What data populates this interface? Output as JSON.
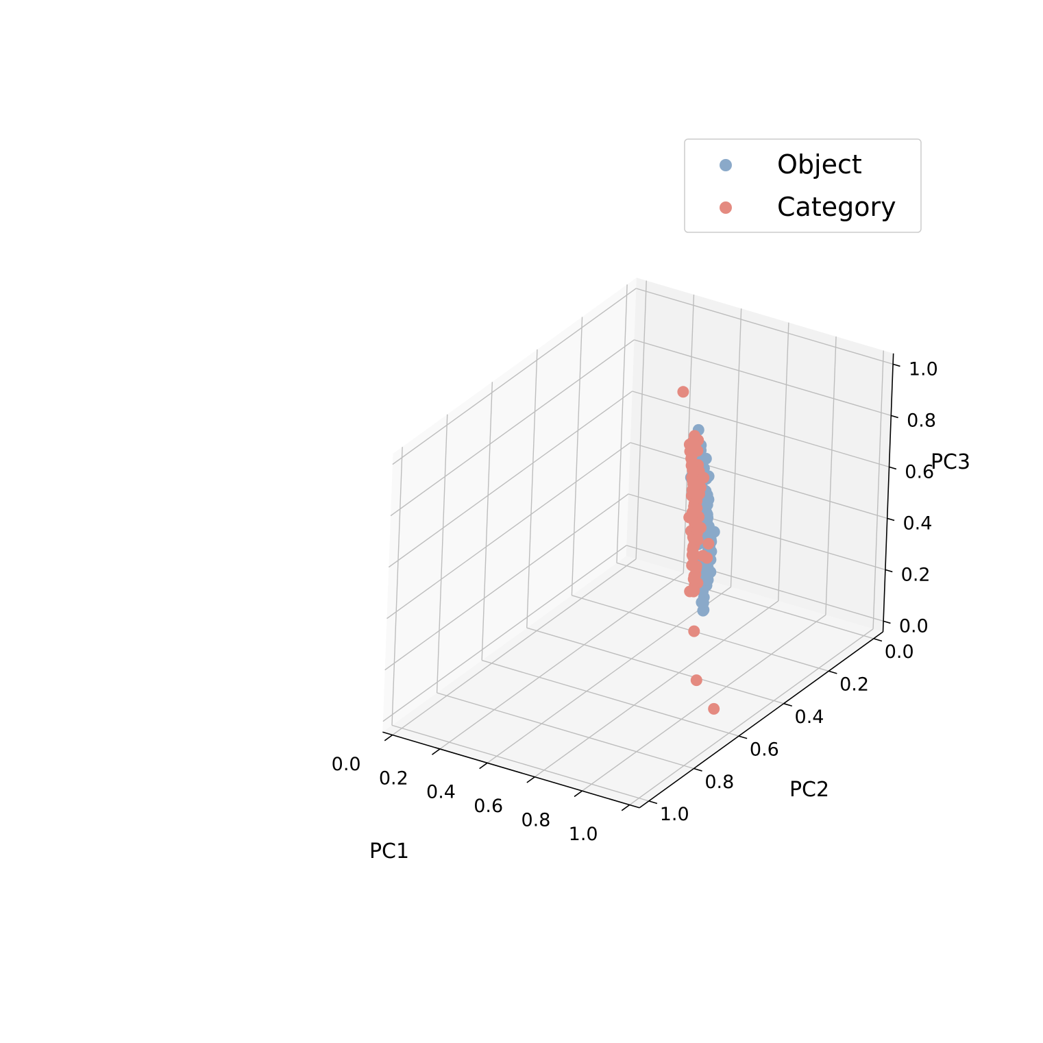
{
  "chart_data": {
    "type": "scatter",
    "projection": "3d",
    "xlabel": "PC1",
    "ylabel": "PC2",
    "zlabel": "PC3",
    "xlim": [
      0,
      1
    ],
    "ylim": [
      0,
      1
    ],
    "zlim": [
      0,
      1
    ],
    "ticks": [
      "0.0",
      "0.2",
      "0.4",
      "0.6",
      "0.8",
      "1.0"
    ],
    "grid": true,
    "legend_position": "top-right",
    "colors": {
      "Object": "#8aa9c9",
      "Category": "#e48a80"
    },
    "series": [
      {
        "name": "Object",
        "points": [
          [
            0.44,
            0.68,
            0.95
          ],
          [
            0.47,
            0.72,
            0.92
          ],
          [
            0.49,
            0.72,
            0.92
          ],
          [
            0.5,
            0.74,
            0.93
          ],
          [
            0.47,
            0.72,
            0.9
          ],
          [
            0.48,
            0.73,
            0.88
          ],
          [
            0.45,
            0.69,
            0.89
          ],
          [
            0.5,
            0.72,
            0.88
          ],
          [
            0.44,
            0.68,
            0.86
          ],
          [
            0.52,
            0.74,
            0.87
          ],
          [
            0.44,
            0.7,
            0.84
          ],
          [
            0.51,
            0.72,
            0.82
          ],
          [
            0.53,
            0.76,
            0.84
          ],
          [
            0.55,
            0.8,
            0.83
          ],
          [
            0.49,
            0.75,
            0.8
          ],
          [
            0.52,
            0.78,
            0.8
          ],
          [
            0.55,
            0.82,
            0.82
          ],
          [
            0.52,
            0.8,
            0.78
          ],
          [
            0.56,
            0.83,
            0.8
          ],
          [
            0.48,
            0.73,
            0.75
          ],
          [
            0.52,
            0.78,
            0.75
          ],
          [
            0.5,
            0.72,
            0.76
          ],
          [
            0.54,
            0.82,
            0.76
          ],
          [
            0.58,
            0.85,
            0.78
          ],
          [
            0.47,
            0.74,
            0.74
          ],
          [
            0.51,
            0.77,
            0.73
          ],
          [
            0.54,
            0.81,
            0.73
          ],
          [
            0.56,
            0.84,
            0.74
          ],
          [
            0.44,
            0.72,
            0.71
          ],
          [
            0.48,
            0.76,
            0.71
          ],
          [
            0.52,
            0.8,
            0.71
          ],
          [
            0.55,
            0.83,
            0.71
          ],
          [
            0.49,
            0.77,
            0.68
          ],
          [
            0.53,
            0.82,
            0.67
          ],
          [
            0.56,
            0.86,
            0.68
          ],
          [
            0.46,
            0.75,
            0.64
          ],
          [
            0.5,
            0.78,
            0.64
          ],
          [
            0.53,
            0.82,
            0.64
          ],
          [
            0.56,
            0.86,
            0.64
          ],
          [
            0.49,
            0.76,
            0.61
          ],
          [
            0.52,
            0.8,
            0.61
          ],
          [
            0.55,
            0.84,
            0.6
          ],
          [
            0.58,
            0.88,
            0.62
          ],
          [
            0.5,
            0.79,
            0.57
          ],
          [
            0.53,
            0.82,
            0.57
          ],
          [
            0.56,
            0.86,
            0.57
          ],
          [
            0.52,
            0.8,
            0.53
          ],
          [
            0.55,
            0.84,
            0.53
          ],
          [
            0.58,
            0.88,
            0.54
          ],
          [
            0.5,
            0.77,
            0.5
          ],
          [
            0.53,
            0.82,
            0.5
          ],
          [
            0.56,
            0.85,
            0.5
          ],
          [
            0.48,
            0.75,
            0.47
          ],
          [
            0.52,
            0.78,
            0.47
          ],
          [
            0.55,
            0.83,
            0.47
          ],
          [
            0.46,
            0.74,
            0.43
          ],
          [
            0.5,
            0.78,
            0.44
          ],
          [
            0.53,
            0.82,
            0.44
          ],
          [
            0.51,
            0.78,
            0.4
          ],
          [
            0.54,
            0.82,
            0.4
          ],
          [
            0.48,
            0.76,
            0.37
          ],
          [
            0.52,
            0.8,
            0.36
          ],
          [
            0.55,
            0.83,
            0.36
          ],
          [
            0.52,
            0.8,
            0.33
          ],
          [
            0.44,
            0.72,
            0.29
          ],
          [
            0.47,
            0.76,
            0.72
          ],
          [
            0.51,
            0.79,
            0.69
          ],
          [
            0.49,
            0.79,
            0.56
          ],
          [
            0.45,
            0.73,
            0.78
          ],
          [
            0.46,
            0.72,
            0.62
          ],
          [
            0.55,
            0.83,
            0.88
          ],
          [
            0.5,
            0.76,
            0.85
          ],
          [
            0.43,
            0.7,
            0.8
          ],
          [
            0.52,
            0.77,
            0.58
          ],
          [
            0.47,
            0.77,
            0.41
          ],
          [
            0.54,
            0.84,
            0.63
          ],
          [
            0.48,
            0.74,
            0.66
          ],
          [
            0.49,
            0.75,
            0.4
          ],
          [
            0.57,
            0.88,
            0.69
          ],
          [
            0.45,
            0.73,
            0.6
          ],
          [
            0.53,
            0.8,
            0.78
          ],
          [
            0.51,
            0.78,
            0.91
          ]
        ]
      },
      {
        "name": "Category",
        "points": [
          [
            0.44,
            0.68,
            0.91
          ],
          [
            0.43,
            0.66,
            0.88
          ],
          [
            0.46,
            0.69,
            0.89
          ],
          [
            0.38,
            0.61,
            0.87
          ],
          [
            0.4,
            0.62,
            0.86
          ],
          [
            0.43,
            0.67,
            0.86
          ],
          [
            0.39,
            0.6,
            0.84
          ],
          [
            0.42,
            0.63,
            0.84
          ],
          [
            0.48,
            0.72,
            0.85
          ],
          [
            0.54,
            0.78,
            0.88
          ],
          [
            0.51,
            0.75,
            0.83
          ],
          [
            0.5,
            0.73,
            0.81
          ],
          [
            0.4,
            0.62,
            0.81
          ],
          [
            0.42,
            0.64,
            0.8
          ],
          [
            0.46,
            0.7,
            0.8
          ],
          [
            0.53,
            0.78,
            0.81
          ],
          [
            0.37,
            0.59,
            0.77
          ],
          [
            0.4,
            0.62,
            0.77
          ],
          [
            0.44,
            0.66,
            0.76
          ],
          [
            0.49,
            0.72,
            0.77
          ],
          [
            0.42,
            0.66,
            0.74
          ],
          [
            0.44,
            0.68,
            0.75
          ],
          [
            0.35,
            0.58,
            0.71
          ],
          [
            0.38,
            0.61,
            0.71
          ],
          [
            0.4,
            0.63,
            0.7
          ],
          [
            0.42,
            0.66,
            0.71
          ],
          [
            0.46,
            0.7,
            0.71
          ],
          [
            0.48,
            0.72,
            0.71
          ],
          [
            0.5,
            0.74,
            0.7
          ],
          [
            0.36,
            0.59,
            0.68
          ],
          [
            0.4,
            0.64,
            0.68
          ],
          [
            0.42,
            0.66,
            0.67
          ],
          [
            0.46,
            0.7,
            0.67
          ],
          [
            0.49,
            0.74,
            0.66
          ],
          [
            0.37,
            0.6,
            0.65
          ],
          [
            0.39,
            0.63,
            0.64
          ],
          [
            0.42,
            0.66,
            0.64
          ],
          [
            0.44,
            0.68,
            0.63
          ],
          [
            0.47,
            0.71,
            0.63
          ],
          [
            0.49,
            0.75,
            0.62
          ],
          [
            0.35,
            0.58,
            0.61
          ],
          [
            0.38,
            0.62,
            0.61
          ],
          [
            0.41,
            0.64,
            0.6
          ],
          [
            0.44,
            0.68,
            0.6
          ],
          [
            0.47,
            0.72,
            0.6
          ],
          [
            0.36,
            0.6,
            0.58
          ],
          [
            0.39,
            0.63,
            0.57
          ],
          [
            0.42,
            0.66,
            0.57
          ],
          [
            0.45,
            0.7,
            0.56
          ],
          [
            0.48,
            0.73,
            0.56
          ],
          [
            0.36,
            0.59,
            0.54
          ],
          [
            0.4,
            0.64,
            0.53
          ],
          [
            0.43,
            0.67,
            0.53
          ],
          [
            0.46,
            0.7,
            0.53
          ],
          [
            0.38,
            0.61,
            0.5
          ],
          [
            0.41,
            0.65,
            0.5
          ],
          [
            0.44,
            0.68,
            0.5
          ],
          [
            0.47,
            0.71,
            0.49
          ],
          [
            0.37,
            0.61,
            0.47
          ],
          [
            0.4,
            0.64,
            0.46
          ],
          [
            0.44,
            0.68,
            0.46
          ],
          [
            0.47,
            0.72,
            0.45
          ],
          [
            0.38,
            0.62,
            0.43
          ],
          [
            0.41,
            0.65,
            0.43
          ],
          [
            0.45,
            0.7,
            0.42
          ],
          [
            0.37,
            0.61,
            0.4
          ],
          [
            0.4,
            0.64,
            0.39
          ],
          [
            0.44,
            0.69,
            0.39
          ],
          [
            0.37,
            0.61,
            0.36
          ],
          [
            0.41,
            0.66,
            0.36
          ],
          [
            0.44,
            0.7,
            0.36
          ],
          [
            0.38,
            0.63,
            0.33
          ],
          [
            0.42,
            0.67,
            0.33
          ],
          [
            0.36,
            0.61,
            0.3
          ],
          [
            0.4,
            0.65,
            0.29
          ],
          [
            0.38,
            0.63,
            0.27
          ],
          [
            0.54,
            0.8,
            0.86
          ],
          [
            0.48,
            0.73,
            0.74
          ],
          [
            0.39,
            0.62,
            0.74
          ],
          [
            0.43,
            0.67,
            0.69
          ],
          [
            0.45,
            0.69,
            0.65
          ],
          [
            0.5,
            0.75,
            0.63
          ],
          [
            0.53,
            0.8,
            0.55
          ],
          [
            0.5,
            0.79,
            0.52
          ],
          [
            0.43,
            0.66,
            0.31
          ],
          [
            0.55,
            0.84,
            0.62
          ],
          [
            0.38,
            0.6,
            0.55
          ],
          [
            0.46,
            0.71,
            0.58
          ],
          [
            0.1,
            0.3,
            0.78
          ],
          [
            0.36,
            0.62,
            0.1
          ],
          [
            0.64,
            0.97,
            0.07
          ],
          [
            0.56,
            0.82,
            0.09
          ]
        ]
      }
    ]
  }
}
